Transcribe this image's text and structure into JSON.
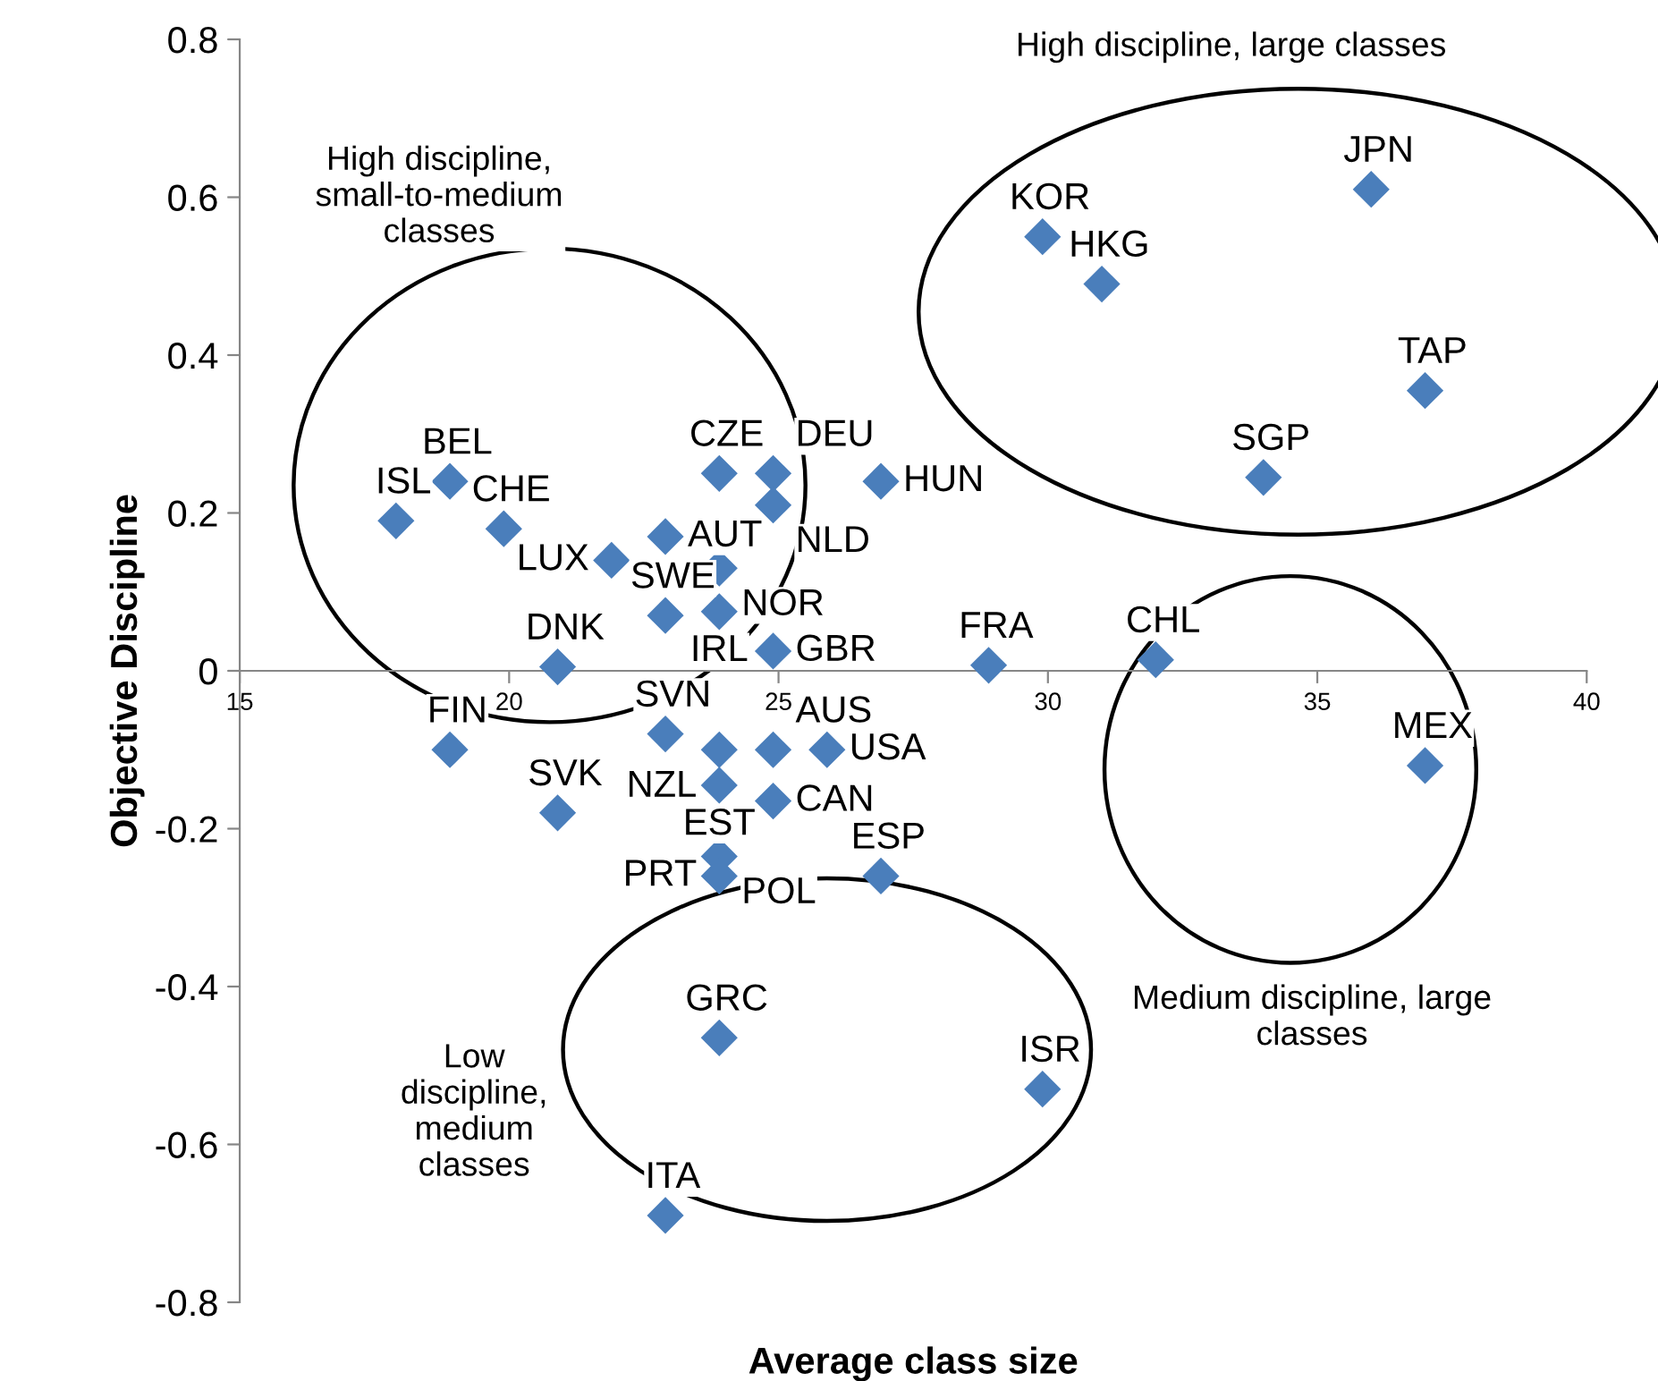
{
  "chart_data": {
    "type": "scatter",
    "xlabel": "Average class size",
    "ylabel": "Objective Discipline",
    "xlim": [
      15,
      40
    ],
    "xticks": [
      15,
      20,
      25,
      30,
      35,
      40
    ],
    "ylim": [
      -0.8,
      0.8
    ],
    "yticks": [
      -0.8,
      -0.6,
      -0.4,
      -0.2,
      0,
      0.2,
      0.4,
      0.6,
      0.8
    ],
    "grid": false,
    "marker": "diamond",
    "series": [
      {
        "color": "#4a7ebb",
        "x": [
          17.9,
          18.9,
          19.9,
          20.9,
          18.9,
          20.9,
          21.9,
          22.9,
          22.9,
          23.9,
          24.9,
          24.9,
          26.9,
          23.9,
          23.9,
          24.9,
          22.9,
          23.9,
          24.9,
          25.9,
          23.9,
          24.9,
          23.9,
          23.9,
          26.9,
          28.9,
          32.0,
          37.0,
          29.9,
          31.0,
          36.0,
          37.0,
          34.0,
          23.9,
          29.9,
          22.9
        ],
        "values": [
          0.19,
          0.24,
          0.18,
          0.005,
          -0.1,
          -0.18,
          0.14,
          0.17,
          0.07,
          0.25,
          0.25,
          0.21,
          0.24,
          0.13,
          0.075,
          0.025,
          -0.08,
          -0.1,
          -0.1,
          -0.1,
          -0.145,
          -0.165,
          -0.235,
          -0.26,
          -0.26,
          0.007,
          0.014,
          -0.12,
          0.55,
          0.49,
          0.61,
          0.355,
          0.245,
          -0.465,
          -0.53,
          -0.69
        ],
        "value_labels": [
          "ISL",
          "BEL",
          "CHE",
          "DNK",
          "FIN",
          "SVK",
          "LUX",
          "AUT",
          "SWE",
          "CZE",
          "DEU",
          "NLD",
          "HUN",
          "NOR",
          "IRL",
          "GBR",
          "SVN",
          "NZL",
          "AUS",
          "USA",
          "EST",
          "CAN",
          "POL",
          "PRT",
          "ESP",
          "FRA",
          "CHL",
          "MEX",
          "KOR",
          "HKG",
          "JPN",
          "TAP",
          "SGP",
          "GRC",
          "ISR",
          "ITA"
        ]
      }
    ],
    "annotations": [
      "High discipline,\nsmall-to-medium\nclasses",
      "High discipline, large classes",
      "Medium discipline, large\nclasses",
      "Low\ndiscipline,\nmedium\nclasses"
    ]
  }
}
